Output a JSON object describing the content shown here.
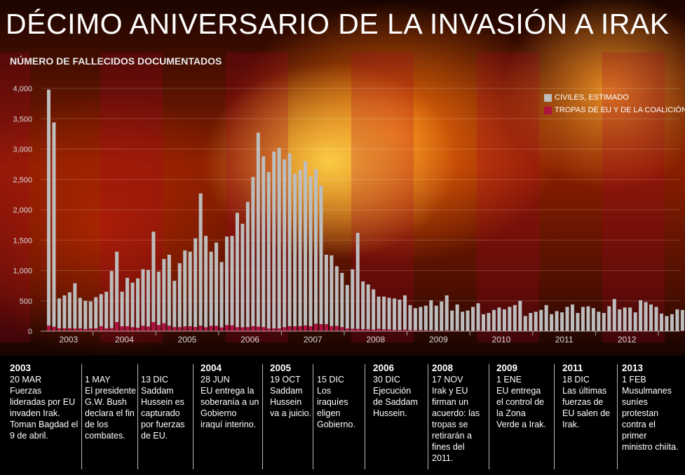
{
  "title": "DÉCIMO ANIVERSARIO DE LA INVASIÓN A IRAK",
  "subtitle": "NÚMERO DE FALLECIDOS DOCUMENTADOS",
  "colors": {
    "civilians": "#bdbdbd",
    "troops": "#b0123f",
    "text": "#ffffff"
  },
  "chart_data": {
    "type": "bar",
    "stacked": false,
    "ylim": [
      0,
      4000
    ],
    "yticks": [
      "4,000",
      "3,500",
      "3,000",
      "2,500",
      "2,000",
      "1,500",
      "1,000",
      "500",
      "0"
    ],
    "ytick_values": [
      4000,
      3500,
      3000,
      2500,
      2000,
      1500,
      1000,
      500,
      0
    ],
    "year_labels": [
      "2003",
      "2004",
      "2005",
      "2006",
      "2007",
      "2008",
      "2009",
      "2010",
      "2011",
      "2012"
    ],
    "x_start": "2003-03",
    "series": [
      {
        "name": "CIVILES, ESTIMADO",
        "color": "#bdbdbd",
        "values": [
          3980,
          3440,
          540,
          590,
          640,
          790,
          550,
          500,
          490,
          560,
          610,
          650,
          990,
          1310,
          650,
          880,
          800,
          870,
          1020,
          1010,
          1640,
          980,
          1190,
          1260,
          830,
          1120,
          1330,
          1310,
          1530,
          2270,
          1570,
          1310,
          1460,
          1140,
          1560,
          1570,
          1950,
          1770,
          2130,
          2540,
          3270,
          2880,
          2620,
          2960,
          3020,
          2830,
          2930,
          2590,
          2660,
          2800,
          2550,
          2670,
          2400,
          1260,
          1250,
          1070,
          960,
          760,
          1020,
          1620,
          820,
          770,
          690,
          570,
          570,
          550,
          540,
          520,
          590,
          430,
          380,
          400,
          420,
          510,
          420,
          490,
          590,
          340,
          440,
          320,
          340,
          400,
          460,
          280,
          300,
          350,
          390,
          360,
          400,
          430,
          500,
          250,
          300,
          320,
          350,
          430,
          280,
          330,
          310,
          400,
          440,
          300,
          400,
          410,
          380,
          320,
          300,
          410,
          530,
          360,
          390,
          390,
          310,
          510,
          480,
          440,
          400,
          290,
          250,
          280,
          360,
          350
        ]
      },
      {
        "name": "TROPAS DE EU Y DE LA COALICIÓN",
        "color": "#b0123f",
        "values": [
          92,
          74,
          47,
          48,
          48,
          43,
          49,
          34,
          45,
          46,
          82,
          45,
          52,
          150,
          80,
          82,
          66,
          56,
          88,
          77,
          150,
          101,
          130,
          90,
          68,
          68,
          78,
          82,
          70,
          92,
          66,
          88,
          89,
          62,
          100,
          96,
          66,
          64,
          68,
          82,
          76,
          67,
          43,
          46,
          45,
          66,
          83,
          80,
          83,
          95,
          82,
          123,
          116,
          116,
          84,
          88,
          68,
          44,
          40,
          38,
          34,
          31,
          27,
          40,
          30,
          29,
          20,
          19,
          26,
          17,
          14,
          18,
          16,
          16,
          10,
          10,
          15,
          10,
          13,
          8,
          8,
          7,
          13,
          8,
          6,
          8,
          7,
          7,
          6,
          7,
          8,
          7,
          6,
          7,
          6,
          6,
          5,
          5,
          5,
          5,
          5,
          5,
          5,
          5,
          4,
          4,
          3,
          3,
          2,
          2,
          2,
          2,
          1,
          1,
          1,
          1,
          1,
          1,
          1,
          1,
          1,
          1
        ]
      }
    ],
    "legend_position": "top-right"
  },
  "timeline": [
    {
      "year": "2003",
      "date": "20 MAR",
      "text": "Fuerzas lideradas por EU invaden Irak. Toman Bagdad el 9 de abril."
    },
    {
      "year": "",
      "date": "1 MAY",
      "text": "El presidente G.W. Bush declara el fin de los combates."
    },
    {
      "year": "",
      "date": "13 DIC",
      "text": "Saddam Hussein es capturado por fuerzas de EU."
    },
    {
      "year": "2004",
      "date": "28 JUN",
      "text": "EU entrega la soberanía a un Gobierno iraquí interino."
    },
    {
      "year": "2005",
      "date": "19 OCT",
      "text": "Saddam Hussein va a juicio."
    },
    {
      "year": "",
      "date": "15 DIC",
      "text": "Los iraquíes eligen Gobierno."
    },
    {
      "year": "2006",
      "date": "30 DIC",
      "text": "Ejecución de Saddam Hussein."
    },
    {
      "year": "2008",
      "date": "17 NOV",
      "text": "Irak y EU firman un acuerdo: las tropas se retirarán a fines del 2011."
    },
    {
      "year": "2009",
      "date": "1 ENE",
      "text": "EU entrega el control de la Zona Verde a Irak."
    },
    {
      "year": "2011",
      "date": "18 DIC",
      "text": "Las últimas fuerzas de EU salen de Irak."
    },
    {
      "year": "2013",
      "date": "1 FEB",
      "text": "Musulmanes suníes protestan contra el primer ministro chiíta."
    }
  ]
}
